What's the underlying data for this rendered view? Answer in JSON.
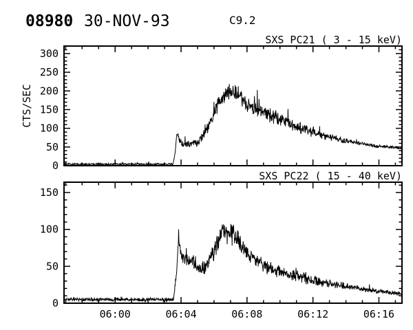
{
  "header": {
    "event_id": "08980",
    "date": "30-NOV-93",
    "goes_class": "C9.2"
  },
  "colors": {
    "foreground": "#000000",
    "background": "#ffffff"
  },
  "chart_data": [
    {
      "type": "line",
      "title": "SXS PC21  (  3 - 15 keV)",
      "ylabel": "CTS/SEC",
      "ylim": [
        0,
        320
      ],
      "yticks": [
        0,
        50,
        100,
        150,
        200,
        250,
        300
      ],
      "y_minor_step": 10,
      "x_domain_minutes_after_0600": [
        -3.1,
        17.4
      ],
      "xticks": [
        {
          "t": 0,
          "label": "06:00"
        },
        {
          "t": 4,
          "label": "06:04"
        },
        {
          "t": 8,
          "label": "06:08"
        },
        {
          "t": 12,
          "label": "06:12"
        },
        {
          "t": 16,
          "label": "06:16"
        }
      ],
      "x_minor_step_minutes": 1,
      "show_x_labels": false,
      "noise_seed": 42,
      "keypoints": [
        [
          -3.1,
          4,
          3
        ],
        [
          3.5,
          4,
          3
        ],
        [
          3.62,
          25,
          6
        ],
        [
          3.75,
          88,
          10
        ],
        [
          3.95,
          62,
          10
        ],
        [
          4.3,
          58,
          11
        ],
        [
          5.0,
          62,
          13
        ],
        [
          5.4,
          85,
          16
        ],
        [
          5.9,
          125,
          20
        ],
        [
          6.3,
          170,
          24
        ],
        [
          6.7,
          195,
          26
        ],
        [
          7.1,
          202,
          26
        ],
        [
          7.5,
          188,
          25
        ],
        [
          8.1,
          162,
          24
        ],
        [
          9.0,
          142,
          22
        ],
        [
          10.0,
          124,
          20
        ],
        [
          11.0,
          106,
          17
        ],
        [
          12.0,
          89,
          15
        ],
        [
          13.0,
          76,
          12
        ],
        [
          14.0,
          66,
          8
        ],
        [
          15.0,
          58,
          5
        ],
        [
          16.0,
          52,
          5
        ],
        [
          17.4,
          47,
          5
        ]
      ]
    },
    {
      "type": "line",
      "title": "SXS PC22  ( 15 - 40 keV)",
      "ylabel": "",
      "ylim": [
        0,
        164
      ],
      "yticks": [
        0,
        50,
        100,
        150
      ],
      "y_minor_step": 10,
      "x_domain_minutes_after_0600": [
        -3.1,
        17.4
      ],
      "xticks": [
        {
          "t": 0,
          "label": "06:00"
        },
        {
          "t": 4,
          "label": "06:04"
        },
        {
          "t": 8,
          "label": "06:08"
        },
        {
          "t": 12,
          "label": "06:12"
        },
        {
          "t": 16,
          "label": "06:16"
        }
      ],
      "x_minor_step_minutes": 1,
      "show_x_labels": true,
      "noise_seed": 7,
      "keypoints": [
        [
          -3.1,
          5,
          3
        ],
        [
          3.55,
          5,
          3
        ],
        [
          3.7,
          35,
          8
        ],
        [
          3.85,
          88,
          10
        ],
        [
          4.0,
          68,
          12
        ],
        [
          4.4,
          58,
          13
        ],
        [
          5.0,
          50,
          13
        ],
        [
          5.4,
          46,
          13
        ],
        [
          5.9,
          65,
          16
        ],
        [
          6.3,
          88,
          18
        ],
        [
          6.6,
          97,
          18
        ],
        [
          7.1,
          94,
          18
        ],
        [
          7.6,
          80,
          15
        ],
        [
          8.2,
          64,
          13
        ],
        [
          9.0,
          52,
          12
        ],
        [
          10.0,
          43,
          10
        ],
        [
          11.0,
          37,
          9
        ],
        [
          12.0,
          31,
          8
        ],
        [
          13.0,
          27,
          7
        ],
        [
          14.0,
          23,
          5
        ],
        [
          15.0,
          19,
          4
        ],
        [
          16.0,
          16,
          4
        ],
        [
          17.4,
          13,
          3
        ]
      ]
    }
  ]
}
